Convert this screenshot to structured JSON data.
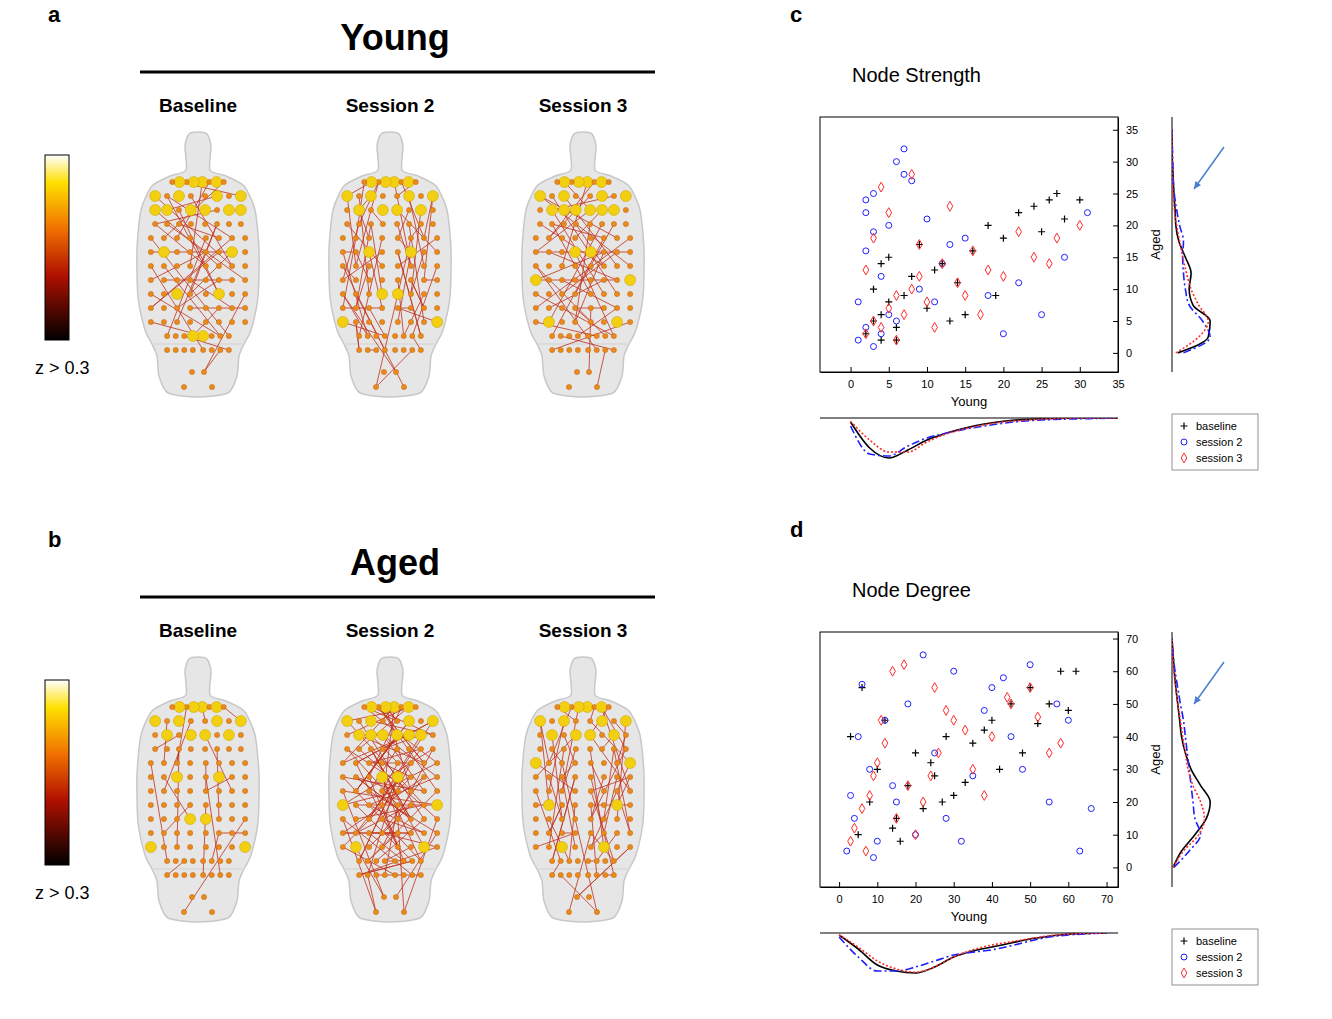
{
  "brain_panels": [
    {
      "panel": "a",
      "title": "Young",
      "columns": [
        "Baseline",
        "Session 2",
        "Session 3"
      ],
      "colorbar_label": "z > 0.3"
    },
    {
      "panel": "b",
      "title": "Aged",
      "columns": [
        "Baseline",
        "Session 2",
        "Session 3"
      ],
      "colorbar_label": "z > 0.3"
    }
  ],
  "chart_data": [
    {
      "panel": "c",
      "type": "scatter",
      "title": "Node Strength",
      "x_label": "Young",
      "y_label": "Aged",
      "xlim": [
        -4,
        35
      ],
      "xticks": [
        0,
        5,
        10,
        15,
        20,
        25,
        30,
        35
      ],
      "ylim": [
        -3,
        37
      ],
      "yticks": [
        0,
        5,
        10,
        15,
        20,
        25,
        30,
        35
      ],
      "legend": "lower right",
      "density_x": [
        0,
        2.5,
        5,
        7.5,
        10,
        12.5,
        15,
        17.5,
        20,
        22.5,
        25,
        27.5,
        30,
        32.5,
        35
      ],
      "density_y": [
        0,
        2.5,
        5,
        7.5,
        10,
        12.5,
        15,
        17.5,
        20,
        22.5,
        25,
        27.5,
        30,
        32.5,
        35
      ],
      "density_lim": [
        0,
        1.1
      ],
      "series": [
        {
          "name": "baseline",
          "color": "#000000",
          "marker": "plus",
          "line_style": "solid",
          "x": [
            2,
            3,
            4,
            5,
            6,
            3,
            4,
            8,
            10,
            12,
            7,
            5,
            14,
            16,
            18,
            20,
            22,
            24,
            26,
            27,
            28,
            30,
            9,
            11,
            6,
            15,
            19,
            25,
            4,
            13
          ],
          "values": [
            3,
            5,
            2,
            8,
            4,
            10,
            6,
            12,
            7,
            14,
            9,
            15,
            11,
            16,
            20,
            18,
            22,
            23,
            24,
            25,
            21,
            24,
            17,
            13,
            2,
            6,
            9,
            19,
            14,
            5
          ],
          "x_density": [
            0.1,
            0.75,
            1.0,
            0.8,
            0.55,
            0.38,
            0.25,
            0.15,
            0.08,
            0.04,
            0.02,
            0.01,
            0.0,
            0.0,
            0.0
          ],
          "y_density": [
            0.15,
            0.95,
            1.0,
            0.55,
            0.45,
            0.5,
            0.35,
            0.18,
            0.1,
            0.08,
            0.05,
            0.03,
            0.01,
            0.0,
            0.0
          ]
        },
        {
          "name": "session 2",
          "color": "#1f1fff",
          "marker": "circle",
          "line_style": "dashdot",
          "x": [
            1,
            2,
            3,
            2,
            4,
            5,
            3,
            6,
            7,
            8,
            1,
            2,
            4,
            5,
            9,
            11,
            12,
            15,
            18,
            22,
            25,
            28,
            31,
            6,
            7,
            10,
            3,
            20,
            2,
            13
          ],
          "values": [
            2,
            4,
            1,
            22,
            3,
            6,
            25,
            30,
            32,
            27,
            8,
            16,
            12,
            20,
            10,
            8,
            14,
            18,
            9,
            11,
            6,
            15,
            22,
            5,
            28,
            21,
            19,
            3,
            24,
            17
          ],
          "x_density": [
            0.2,
            0.9,
            0.95,
            0.7,
            0.5,
            0.38,
            0.28,
            0.2,
            0.13,
            0.08,
            0.05,
            0.03,
            0.02,
            0.01,
            0.0
          ],
          "y_density": [
            0.3,
            1.0,
            0.8,
            0.45,
            0.35,
            0.3,
            0.28,
            0.3,
            0.2,
            0.12,
            0.06,
            0.03,
            0.02,
            0.01,
            0.0
          ]
        },
        {
          "name": "session 3",
          "color": "#ff2a2a",
          "marker": "diamond",
          "line_style": "dotted",
          "x": [
            2,
            3,
            4,
            5,
            6,
            7,
            8,
            9,
            10,
            12,
            14,
            16,
            18,
            20,
            24,
            27,
            30,
            4,
            5,
            3,
            11,
            13,
            15,
            6,
            8,
            2,
            22,
            17,
            9,
            26
          ],
          "values": [
            3,
            5,
            4,
            7,
            9,
            6,
            10,
            12,
            8,
            14,
            11,
            16,
            13,
            12,
            15,
            18,
            20,
            26,
            22,
            18,
            4,
            23,
            9,
            2,
            28,
            13,
            19,
            6,
            17,
            14
          ],
          "x_density": [
            0.08,
            0.55,
            0.85,
            0.85,
            0.6,
            0.4,
            0.27,
            0.17,
            0.1,
            0.06,
            0.03,
            0.01,
            0.0,
            0.0,
            0.0
          ],
          "y_density": [
            0.1,
            0.7,
            0.95,
            0.7,
            0.5,
            0.38,
            0.28,
            0.2,
            0.12,
            0.06,
            0.03,
            0.01,
            0.0,
            0.0,
            0.0
          ]
        }
      ]
    },
    {
      "panel": "d",
      "type": "scatter",
      "title": "Node Degree",
      "x_label": "Young",
      "y_label": "Aged",
      "xlim": [
        -5,
        73
      ],
      "xticks": [
        0,
        10,
        20,
        30,
        40,
        50,
        60,
        70
      ],
      "ylim": [
        -6,
        72
      ],
      "yticks": [
        0,
        10,
        20,
        30,
        40,
        50,
        60,
        70
      ],
      "legend": "lower right",
      "density_x": [
        0,
        5,
        10,
        15,
        20,
        25,
        30,
        35,
        40,
        45,
        50,
        55,
        60,
        65,
        70
      ],
      "density_y": [
        0,
        5,
        10,
        15,
        20,
        25,
        30,
        35,
        40,
        45,
        50,
        55,
        60,
        65,
        70
      ],
      "density_lim": [
        0,
        1.1
      ],
      "series": [
        {
          "name": "baseline",
          "color": "#000000",
          "marker": "plus",
          "line_style": "solid",
          "x": [
            5,
            8,
            10,
            12,
            15,
            18,
            20,
            22,
            25,
            28,
            30,
            35,
            40,
            42,
            45,
            48,
            50,
            55,
            58,
            60,
            62,
            3,
            6,
            14,
            24,
            33,
            38,
            52,
            16,
            27
          ],
          "values": [
            10,
            20,
            30,
            45,
            15,
            25,
            35,
            18,
            28,
            40,
            22,
            38,
            45,
            30,
            50,
            35,
            55,
            50,
            60,
            48,
            60,
            40,
            55,
            12,
            32,
            26,
            42,
            44,
            8,
            20
          ],
          "x_density": [
            0.05,
            0.4,
            0.8,
            0.95,
            1.0,
            0.85,
            0.6,
            0.45,
            0.35,
            0.25,
            0.15,
            0.08,
            0.03,
            0.01,
            0.0
          ],
          "y_density": [
            0.03,
            0.25,
            0.6,
            0.9,
            1.0,
            0.75,
            0.5,
            0.35,
            0.25,
            0.2,
            0.15,
            0.1,
            0.06,
            0.03,
            0.0
          ]
        },
        {
          "name": "session 2",
          "color": "#1f1fff",
          "marker": "circle",
          "line_style": "dashdot",
          "x": [
            2,
            4,
            6,
            8,
            10,
            12,
            15,
            18,
            20,
            25,
            30,
            35,
            40,
            45,
            50,
            55,
            60,
            63,
            66,
            5,
            9,
            14,
            22,
            28,
            38,
            48,
            57,
            3,
            32,
            43
          ],
          "values": [
            5,
            15,
            56,
            30,
            8,
            45,
            20,
            50,
            10,
            35,
            60,
            28,
            55,
            40,
            62,
            20,
            45,
            5,
            18,
            40,
            3,
            25,
            65,
            15,
            48,
            30,
            50,
            22,
            8,
            58
          ],
          "x_density": [
            0.1,
            0.6,
            0.95,
            0.95,
            0.85,
            0.7,
            0.55,
            0.48,
            0.42,
            0.32,
            0.2,
            0.1,
            0.05,
            0.02,
            0.0
          ],
          "y_density": [
            0.05,
            0.45,
            0.75,
            0.6,
            0.55,
            0.5,
            0.45,
            0.4,
            0.35,
            0.3,
            0.22,
            0.15,
            0.08,
            0.03,
            0.0
          ]
        },
        {
          "name": "session 3",
          "color": "#ff2a2a",
          "marker": "diamond",
          "line_style": "dotted",
          "x": [
            3,
            6,
            9,
            12,
            15,
            18,
            22,
            26,
            30,
            35,
            40,
            45,
            50,
            55,
            58,
            4,
            8,
            11,
            14,
            20,
            25,
            28,
            33,
            38,
            44,
            52,
            7,
            10,
            17,
            24
          ],
          "values": [
            8,
            18,
            28,
            38,
            15,
            25,
            20,
            35,
            45,
            30,
            40,
            50,
            55,
            35,
            38,
            12,
            22,
            45,
            60,
            10,
            55,
            48,
            42,
            22,
            52,
            46,
            5,
            32,
            62,
            28
          ],
          "x_density": [
            0.05,
            0.35,
            0.7,
            0.9,
            0.98,
            0.85,
            0.6,
            0.42,
            0.3,
            0.22,
            0.14,
            0.07,
            0.03,
            0.01,
            0.0
          ],
          "y_density": [
            0.03,
            0.3,
            0.7,
            0.85,
            0.75,
            0.55,
            0.42,
            0.35,
            0.28,
            0.22,
            0.15,
            0.1,
            0.05,
            0.02,
            0.0
          ]
        }
      ]
    }
  ]
}
